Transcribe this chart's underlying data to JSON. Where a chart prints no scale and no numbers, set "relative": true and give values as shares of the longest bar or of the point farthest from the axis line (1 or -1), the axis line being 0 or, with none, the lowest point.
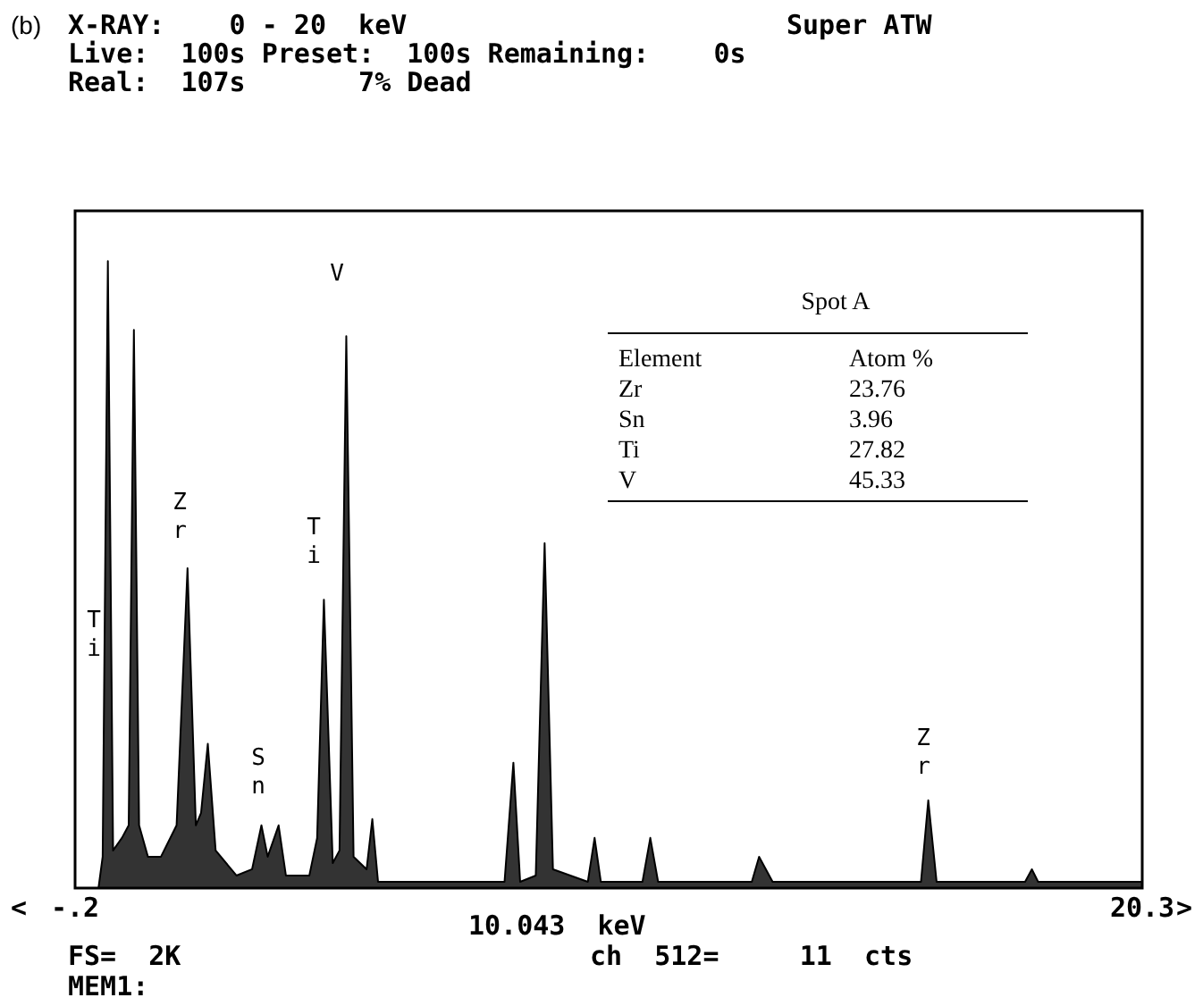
{
  "chart_data": {
    "type": "area",
    "title": "(b)",
    "relative": true,
    "legend": false,
    "marker": "none",
    "line_style": "solid",
    "xlim": [
      -0.2,
      20.3
    ],
    "xticks": [
      {
        "value": -0.2,
        "label": "-.2"
      },
      20.3
    ],
    "x": [
      0.25,
      0.33,
      0.43,
      0.53,
      0.7,
      0.83,
      0.93,
      1.03,
      1.2,
      1.45,
      1.75,
      1.96,
      2.12,
      2.22,
      2.35,
      2.5,
      2.9,
      3.2,
      3.38,
      3.5,
      3.71,
      3.85,
      4.3,
      4.45,
      4.58,
      4.75,
      4.88,
      5.01,
      5.15,
      5.4,
      5.51,
      5.62,
      8.05,
      8.22,
      8.35,
      8.65,
      8.82,
      8.98,
      9.65,
      9.78,
      9.9,
      10.7,
      10.85,
      11.0,
      12.8,
      12.94,
      13.2,
      16.05,
      16.19,
      16.35,
      18.05,
      18.18,
      18.3,
      20.3
    ],
    "series": [
      {
        "color": "#000000",
        "values": [
          0,
          0.05,
          1,
          0.06,
          0.08,
          0.1,
          0.89,
          0.1,
          0.05,
          0.05,
          0.1,
          0.51,
          0.1,
          0.12,
          0.23,
          0.06,
          0.02,
          0.03,
          0.1,
          0.05,
          0.1,
          0.02,
          0.02,
          0.08,
          0.46,
          0.04,
          0.06,
          0.88,
          0.05,
          0.03,
          0.11,
          0.01,
          0.01,
          0.2,
          0.01,
          0.02,
          0.55,
          0.03,
          0.01,
          0.08,
          0.01,
          0.01,
          0.08,
          0.01,
          0.01,
          0.05,
          0.01,
          0.01,
          0.14,
          0.01,
          0.01,
          0.03,
          0.01,
          0.01
        ]
      }
    ],
    "annotations": [
      "X-RAY:    0 - 20  keV",
      "Super ATW",
      "Live:  100s Preset:  100s Remaining:    0s",
      "Real:  107s       7% Dead",
      "10.043  keV",
      "FS=  2K",
      "ch  512=     11  cts",
      "MEM1:",
      "Spot A",
      "Element",
      "Atom %",
      "Zr",
      "23.76",
      "Sn",
      "3.96",
      "Ti",
      "27.82",
      "V",
      "45.33",
      "Ti",
      "Zr",
      "Sn",
      "Ti",
      "V",
      "Zr",
      "<",
      ">"
    ]
  }
}
